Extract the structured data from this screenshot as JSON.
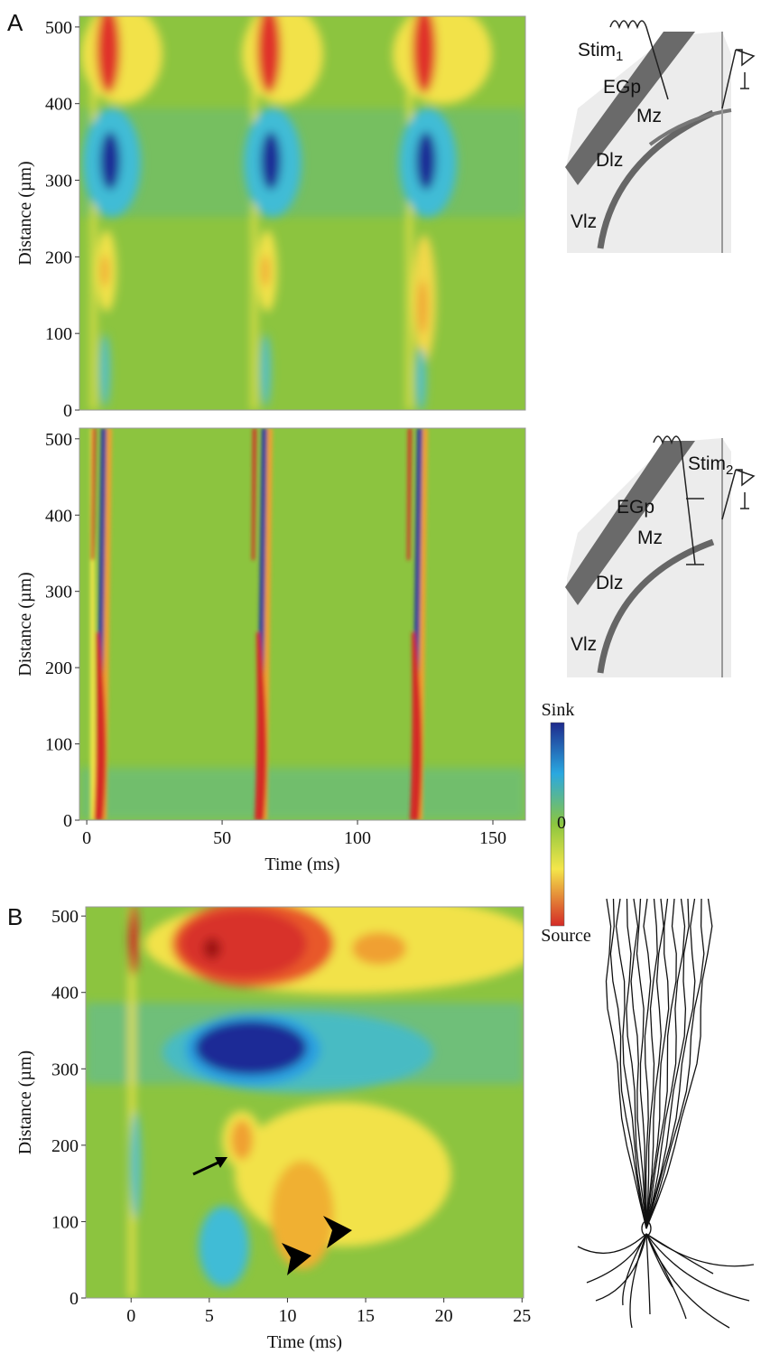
{
  "panel_labels": [
    "A",
    "B"
  ],
  "chart_data": [
    {
      "type": "heatmap",
      "ylabel": "Distance (µm)",
      "xlim": [
        -2.7,
        162
      ],
      "ylim": [
        0,
        514
      ],
      "yticks": [
        0,
        100,
        200,
        300,
        400,
        500
      ]
    },
    {
      "type": "heatmap",
      "ylabel": "Distance (µm)",
      "xlabel": "Time (ms)",
      "xlim": [
        -2.7,
        162
      ],
      "xticks": [
        0,
        50,
        100,
        150
      ],
      "ylim": [
        0,
        514
      ],
      "yticks": [
        0,
        100,
        200,
        300,
        400,
        500
      ]
    },
    {
      "type": "heatmap",
      "ylabel": "Distance (µm)",
      "xlabel": "Time (ms)",
      "xlim": [
        -2.9,
        25.1
      ],
      "xticks": [
        0,
        5,
        10,
        15,
        20,
        25
      ],
      "ylim": [
        0,
        512
      ],
      "yticks": [
        0,
        100,
        200,
        300,
        400,
        500
      ]
    }
  ],
  "colorbar": {
    "labels": [
      "Sink",
      "0",
      "Source"
    ]
  },
  "insets": [
    {
      "stim": "Stim",
      "stim_sub": "1",
      "labels": [
        "EGp",
        "Mz",
        "Dlz",
        "Vlz"
      ]
    },
    {
      "stim": "Stim",
      "stim_sub": "2",
      "labels": [
        "EGp",
        "Mz",
        "Dlz",
        "Vlz"
      ]
    }
  ]
}
